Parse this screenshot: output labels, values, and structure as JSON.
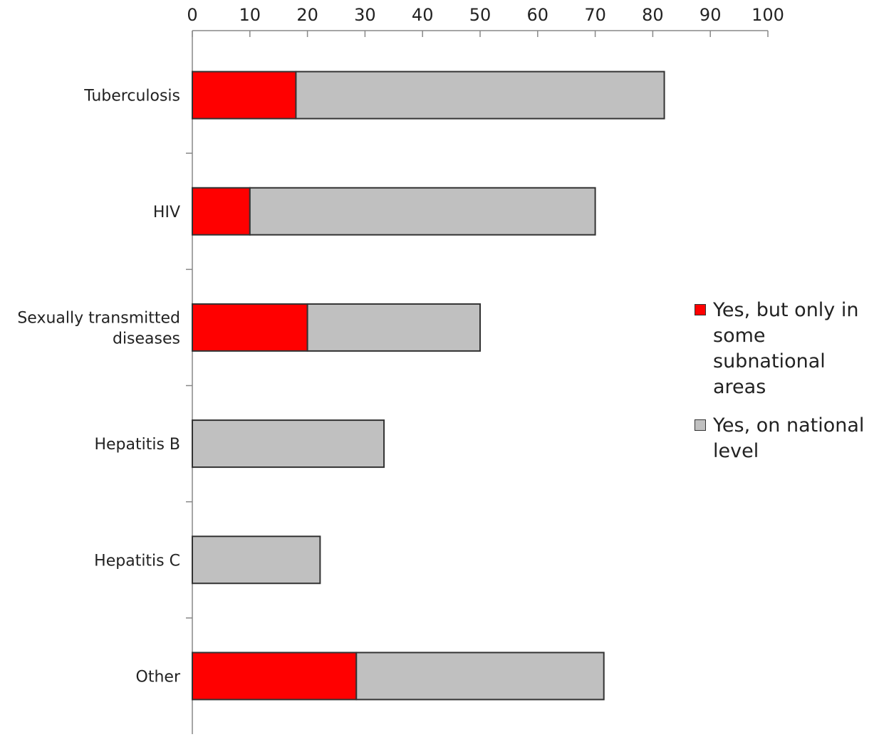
{
  "chart_data": {
    "type": "bar",
    "orientation": "horizontal",
    "stacked": true,
    "categories": [
      "Tuberculosis",
      "HIV",
      "Sexually transmitted diseases",
      "Hepatitis B",
      "Hepatitis C",
      "Other"
    ],
    "category_lines": [
      [
        "Tuberculosis"
      ],
      [
        "HIV"
      ],
      [
        "Sexually transmitted",
        "diseases"
      ],
      [
        "Hepatitis B"
      ],
      [
        "Hepatitis C"
      ],
      [
        "Other"
      ]
    ],
    "series": [
      {
        "name": "Yes, but only in some subnational areas",
        "color": "#ff0000",
        "values": [
          18,
          10,
          20,
          0,
          0,
          28.5
        ]
      },
      {
        "name": "Yes, on national level",
        "color": "#c0c0c0",
        "values": [
          64,
          60,
          30,
          33.3,
          22.2,
          43
        ]
      }
    ],
    "x_ticks": [
      "0",
      "10",
      "20",
      "30",
      "40",
      "50",
      "60",
      "70",
      "80",
      "90",
      "100"
    ],
    "xlim": [
      0,
      100
    ],
    "xaxis_position": "top",
    "grid": false,
    "legend_position": "right"
  }
}
